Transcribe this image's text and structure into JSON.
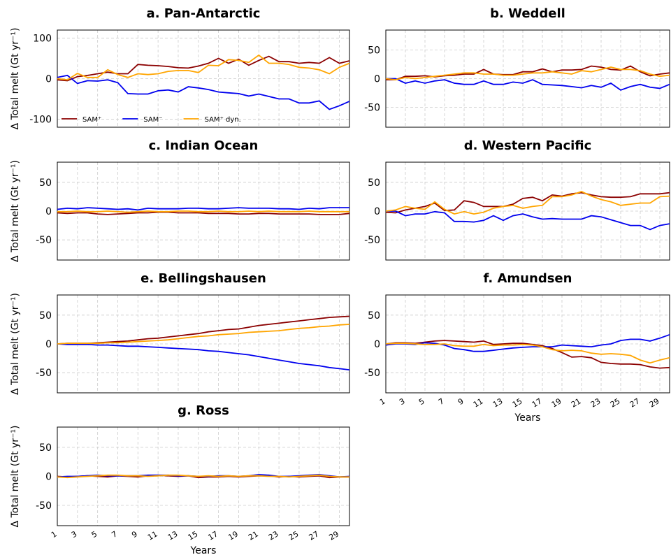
{
  "chart_data": [
    {
      "type": "line",
      "title": "a. Pan-Antarctic",
      "ylabel": "Δ Total melt (Gt yr⁻¹)",
      "legend": "lower left",
      "grid": true,
      "x": [
        1,
        2,
        3,
        4,
        5,
        6,
        7,
        8,
        9,
        10,
        11,
        12,
        13,
        14,
        15,
        16,
        17,
        18,
        19,
        20,
        21,
        22,
        23,
        24,
        25,
        26,
        27,
        28,
        29,
        30
      ],
      "xlim": [
        1,
        30
      ],
      "xticks": [
        1,
        3,
        5,
        7,
        9,
        11,
        13,
        15,
        17,
        19,
        21,
        23,
        25,
        27,
        29
      ],
      "xtick_labels": false,
      "ylim": [
        -120,
        120
      ],
      "yticks": [
        -100,
        0,
        100
      ],
      "series": [
        {
          "name": "SAM⁺",
          "color": "#8b0000",
          "values": [
            -3,
            -5,
            5,
            8,
            12,
            16,
            12,
            12,
            35,
            33,
            32,
            30,
            27,
            26,
            31,
            38,
            50,
            38,
            48,
            33,
            45,
            55,
            42,
            42,
            38,
            40,
            38,
            52,
            38,
            44
          ]
        },
        {
          "name": "SAM⁻",
          "color": "#0000ee",
          "values": [
            3,
            8,
            -12,
            -5,
            -6,
            -3,
            -10,
            -37,
            -38,
            -38,
            -30,
            -28,
            -33,
            -20,
            -23,
            -27,
            -33,
            -35,
            -37,
            -43,
            -38,
            -44,
            -50,
            -50,
            -60,
            -60,
            -55,
            -76,
            -67,
            -56
          ]
        },
        {
          "name": "SAM⁺ dyn.",
          "color": "#ffa500",
          "values": [
            0,
            -3,
            13,
            3,
            3,
            22,
            10,
            3,
            12,
            10,
            12,
            18,
            20,
            20,
            15,
            33,
            32,
            47,
            45,
            40,
            58,
            38,
            38,
            35,
            28,
            26,
            22,
            12,
            28,
            38
          ]
        }
      ]
    },
    {
      "type": "line",
      "title": "b. Weddell",
      "grid": true,
      "x": [
        1,
        2,
        3,
        4,
        5,
        6,
        7,
        8,
        9,
        10,
        11,
        12,
        13,
        14,
        15,
        16,
        17,
        18,
        19,
        20,
        21,
        22,
        23,
        24,
        25,
        26,
        27,
        28,
        29,
        30
      ],
      "xlim": [
        1,
        30
      ],
      "xticks": [
        1,
        3,
        5,
        7,
        9,
        11,
        13,
        15,
        17,
        19,
        21,
        23,
        25,
        27,
        29
      ],
      "xtick_labels": false,
      "ylim": [
        -85,
        85
      ],
      "yticks": [
        -50,
        0,
        50
      ],
      "series": [
        {
          "color": "#8b0000",
          "values": [
            -2,
            -2,
            4,
            4,
            5,
            3,
            5,
            6,
            8,
            8,
            16,
            8,
            7,
            7,
            12,
            12,
            17,
            12,
            15,
            15,
            16,
            22,
            20,
            16,
            15,
            22,
            12,
            5,
            8,
            10
          ]
        },
        {
          "color": "#0000ee",
          "values": [
            0,
            0,
            -8,
            -4,
            -8,
            -4,
            -2,
            -8,
            -10,
            -10,
            -4,
            -10,
            -10,
            -6,
            -8,
            -2,
            -10,
            -11,
            -12,
            -14,
            -16,
            -12,
            -15,
            -8,
            -20,
            -14,
            -10,
            -15,
            -17,
            -10
          ]
        },
        {
          "color": "#ffa500",
          "values": [
            0,
            -2,
            2,
            0,
            2,
            4,
            6,
            8,
            10,
            10,
            8,
            8,
            6,
            6,
            8,
            10,
            10,
            12,
            10,
            8,
            14,
            12,
            16,
            20,
            16,
            16,
            14,
            8,
            4,
            6
          ]
        }
      ]
    },
    {
      "type": "line",
      "title": "c. Indian Ocean",
      "ylabel": "Δ Total melt (Gt yr⁻¹)",
      "grid": true,
      "x": [
        1,
        2,
        3,
        4,
        5,
        6,
        7,
        8,
        9,
        10,
        11,
        12,
        13,
        14,
        15,
        16,
        17,
        18,
        19,
        20,
        21,
        22,
        23,
        24,
        25,
        26,
        27,
        28,
        29,
        30
      ],
      "xlim": [
        1,
        30
      ],
      "xticks": [
        1,
        3,
        5,
        7,
        9,
        11,
        13,
        15,
        17,
        19,
        21,
        23,
        25,
        27,
        29
      ],
      "xtick_labels": false,
      "ylim": [
        -85,
        85
      ],
      "yticks": [
        -50,
        0,
        50
      ],
      "series": [
        {
          "color": "#8b0000",
          "values": [
            -3,
            -4,
            -3,
            -3,
            -5,
            -6,
            -5,
            -4,
            -3,
            -3,
            -2,
            -2,
            -3,
            -3,
            -3,
            -4,
            -4,
            -4,
            -5,
            -5,
            -4,
            -4,
            -5,
            -5,
            -5,
            -5,
            -6,
            -6,
            -6,
            -4
          ]
        },
        {
          "color": "#0000ee",
          "values": [
            3,
            5,
            4,
            6,
            5,
            4,
            3,
            4,
            2,
            5,
            4,
            4,
            4,
            5,
            5,
            4,
            4,
            5,
            6,
            5,
            5,
            5,
            4,
            4,
            3,
            5,
            4,
            6,
            6,
            6
          ]
        },
        {
          "color": "#ffa500",
          "values": [
            -1,
            -1,
            0,
            -1,
            -1,
            0,
            -1,
            -2,
            -1,
            0,
            -1,
            -1,
            0,
            0,
            -1,
            -1,
            0,
            -1,
            -1,
            0,
            -1,
            0,
            -1,
            -1,
            -1,
            0,
            -1,
            -1,
            -1,
            -1
          ]
        }
      ]
    },
    {
      "type": "line",
      "title": "d. Western Pacific",
      "grid": true,
      "x": [
        1,
        2,
        3,
        4,
        5,
        6,
        7,
        8,
        9,
        10,
        11,
        12,
        13,
        14,
        15,
        16,
        17,
        18,
        19,
        20,
        21,
        22,
        23,
        24,
        25,
        26,
        27,
        28,
        29,
        30
      ],
      "xlim": [
        1,
        30
      ],
      "xticks": [
        1,
        3,
        5,
        7,
        9,
        11,
        13,
        15,
        17,
        19,
        21,
        23,
        25,
        27,
        29
      ],
      "xtick_labels": false,
      "ylim": [
        -85,
        85
      ],
      "yticks": [
        -50,
        0,
        50
      ],
      "series": [
        {
          "color": "#8b0000",
          "values": [
            -2,
            -3,
            2,
            5,
            8,
            14,
            1,
            2,
            18,
            15,
            8,
            8,
            8,
            12,
            22,
            24,
            18,
            28,
            26,
            30,
            32,
            28,
            25,
            24,
            24,
            25,
            30,
            30,
            30,
            32
          ]
        },
        {
          "color": "#0000ee",
          "values": [
            0,
            0,
            -8,
            -5,
            -5,
            -1,
            -3,
            -18,
            -18,
            -19,
            -16,
            -8,
            -16,
            -8,
            -5,
            -10,
            -14,
            -13,
            -14,
            -14,
            -14,
            -8,
            -10,
            -15,
            -20,
            -25,
            -25,
            -32,
            -25,
            -22
          ]
        },
        {
          "color": "#ffa500",
          "values": [
            0,
            2,
            8,
            5,
            3,
            16,
            3,
            -5,
            -1,
            -5,
            -2,
            5,
            8,
            10,
            5,
            8,
            10,
            25,
            25,
            28,
            34,
            26,
            20,
            16,
            10,
            12,
            14,
            14,
            25,
            26
          ]
        }
      ]
    },
    {
      "type": "line",
      "title": "e. Bellingshausen",
      "ylabel": "Δ Total melt (Gt yr⁻¹)",
      "grid": true,
      "x": [
        1,
        2,
        3,
        4,
        5,
        6,
        7,
        8,
        9,
        10,
        11,
        12,
        13,
        14,
        15,
        16,
        17,
        18,
        19,
        20,
        21,
        22,
        23,
        24,
        25,
        26,
        27,
        28,
        29,
        30
      ],
      "xlim": [
        1,
        30
      ],
      "xticks": [
        1,
        3,
        5,
        7,
        9,
        11,
        13,
        15,
        17,
        19,
        21,
        23,
        25,
        27,
        29
      ],
      "xtick_labels": false,
      "ylim": [
        -85,
        85
      ],
      "yticks": [
        -50,
        0,
        50
      ],
      "series": [
        {
          "color": "#8b0000",
          "values": [
            0,
            1,
            1,
            1,
            2,
            3,
            4,
            5,
            7,
            9,
            10,
            12,
            14,
            16,
            18,
            21,
            23,
            25,
            26,
            29,
            32,
            34,
            36,
            38,
            40,
            42,
            44,
            46,
            47,
            48
          ]
        },
        {
          "color": "#0000ee",
          "values": [
            0,
            -1,
            -1,
            -1,
            -2,
            -2,
            -3,
            -4,
            -4,
            -5,
            -6,
            -7,
            -8,
            -9,
            -10,
            -12,
            -13,
            -15,
            -17,
            -19,
            -22,
            -25,
            -28,
            -31,
            -34,
            -36,
            -38,
            -41,
            -43,
            -45
          ]
        },
        {
          "color": "#ffa500",
          "values": [
            0,
            1,
            1,
            1,
            1,
            2,
            2,
            3,
            4,
            5,
            6,
            7,
            9,
            11,
            13,
            14,
            16,
            17,
            18,
            20,
            21,
            22,
            23,
            25,
            27,
            28,
            30,
            31,
            33,
            34
          ]
        }
      ]
    },
    {
      "type": "line",
      "title": "f. Amundsen",
      "xlabel": "Years",
      "grid": true,
      "x": [
        1,
        2,
        3,
        4,
        5,
        6,
        7,
        8,
        9,
        10,
        11,
        12,
        13,
        14,
        15,
        16,
        17,
        18,
        19,
        20,
        21,
        22,
        23,
        24,
        25,
        26,
        27,
        28,
        29,
        30
      ],
      "xlim": [
        1,
        30
      ],
      "xticks": [
        1,
        3,
        5,
        7,
        9,
        11,
        13,
        15,
        17,
        19,
        21,
        23,
        25,
        27,
        29
      ],
      "xtick_labels": true,
      "ylim": [
        -85,
        85
      ],
      "yticks": [
        -50,
        0,
        50
      ],
      "series": [
        {
          "color": "#8b0000",
          "values": [
            0,
            2,
            2,
            1,
            3,
            5,
            6,
            5,
            4,
            3,
            5,
            -1,
            0,
            1,
            1,
            -1,
            -3,
            -8,
            -15,
            -23,
            -22,
            -24,
            -32,
            -34,
            -35,
            -35,
            -36,
            -40,
            -42,
            -41
          ]
        },
        {
          "color": "#0000ee",
          "values": [
            -2,
            0,
            0,
            -1,
            2,
            1,
            -2,
            -8,
            -10,
            -13,
            -13,
            -11,
            -9,
            -7,
            -6,
            -5,
            -5,
            -5,
            -2,
            -3,
            -4,
            -5,
            -2,
            0,
            6,
            8,
            8,
            5,
            10,
            16
          ]
        },
        {
          "color": "#ffa500",
          "values": [
            0,
            1,
            1,
            0,
            -1,
            -1,
            0,
            -3,
            -4,
            -4,
            -1,
            -3,
            -2,
            -2,
            -1,
            -2,
            -5,
            -10,
            -12,
            -11,
            -12,
            -16,
            -18,
            -17,
            -18,
            -20,
            -28,
            -33,
            -28,
            -24
          ]
        }
      ]
    },
    {
      "type": "line",
      "title": "g. Ross",
      "ylabel": "Δ Total melt (Gt yr⁻¹)",
      "xlabel": "Years",
      "grid": true,
      "x": [
        1,
        2,
        3,
        4,
        5,
        6,
        7,
        8,
        9,
        10,
        11,
        12,
        13,
        14,
        15,
        16,
        17,
        18,
        19,
        20,
        21,
        22,
        23,
        24,
        25,
        26,
        27,
        28,
        29,
        30
      ],
      "xlim": [
        1,
        30
      ],
      "xticks": [
        1,
        3,
        5,
        7,
        9,
        11,
        13,
        15,
        17,
        19,
        21,
        23,
        25,
        27,
        29
      ],
      "xtick_labels": true,
      "ylim": [
        -85,
        85
      ],
      "yticks": [
        -50,
        0,
        50
      ],
      "series": [
        {
          "color": "#8b0000",
          "values": [
            0,
            -1,
            0,
            1,
            0,
            -1,
            1,
            0,
            -1,
            1,
            2,
            1,
            0,
            1,
            -2,
            -1,
            -1,
            0,
            -1,
            0,
            1,
            1,
            -1,
            0,
            -1,
            0,
            1,
            -2,
            -1,
            -1
          ]
        },
        {
          "color": "#0000ee",
          "values": [
            -1,
            0,
            0,
            1,
            2,
            1,
            1,
            1,
            1,
            2,
            2,
            2,
            1,
            1,
            0,
            0,
            1,
            1,
            0,
            1,
            3,
            2,
            0,
            0,
            1,
            2,
            3,
            1,
            -1,
            0
          ]
        },
        {
          "color": "#ffa500",
          "values": [
            -1,
            -2,
            -1,
            0,
            1,
            2,
            2,
            1,
            1,
            0,
            1,
            2,
            2,
            1,
            0,
            1,
            0,
            1,
            0,
            1,
            1,
            0,
            0,
            -1,
            0,
            1,
            2,
            0,
            -1,
            -1
          ]
        }
      ]
    }
  ]
}
